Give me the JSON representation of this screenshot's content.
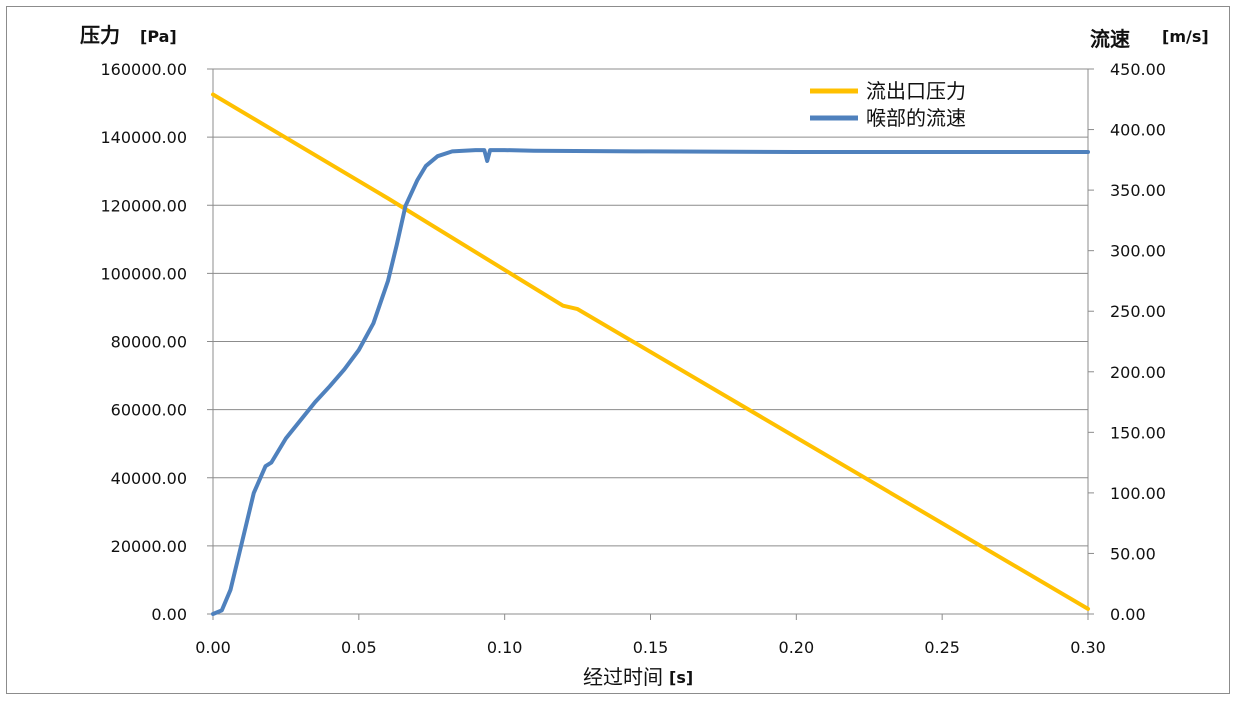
{
  "chart_data": {
    "type": "line",
    "x_axis": {
      "label": "经过时间",
      "unit": "[s]",
      "range": [
        0.0,
        0.3
      ],
      "ticks": [
        "0.00",
        "0.05",
        "0.10",
        "0.15",
        "0.20",
        "0.25",
        "0.30"
      ]
    },
    "y_axis_left": {
      "label": "压力",
      "unit": "[Pa]",
      "range": [
        0,
        160000
      ],
      "ticks": [
        "0.00",
        "20000.00",
        "40000.00",
        "60000.00",
        "80000.00",
        "100000.00",
        "120000.00",
        "140000.00",
        "160000.00"
      ]
    },
    "y_axis_right": {
      "label": "流速",
      "unit": "[m/s]",
      "range": [
        0,
        450
      ],
      "ticks": [
        "0.00",
        "50.00",
        "100.00",
        "150.00",
        "200.00",
        "250.00",
        "300.00",
        "350.00",
        "400.00",
        "450.00"
      ]
    },
    "grid": "horizontal",
    "legend_position": "top-right",
    "series": [
      {
        "name": "流出口压力",
        "axis": "left",
        "color": "#ffc000",
        "points": [
          [
            0.0,
            152500
          ],
          [
            0.06,
            122000
          ],
          [
            0.12,
            90500
          ],
          [
            0.125,
            89500
          ],
          [
            0.3,
            1500
          ]
        ]
      },
      {
        "name": "喉部的流速",
        "axis": "right",
        "color": "#4f81bd",
        "points": [
          [
            0.0,
            0
          ],
          [
            0.003,
            3
          ],
          [
            0.006,
            20
          ],
          [
            0.01,
            60
          ],
          [
            0.014,
            100
          ],
          [
            0.018,
            122
          ],
          [
            0.02,
            125
          ],
          [
            0.025,
            145
          ],
          [
            0.03,
            160
          ],
          [
            0.035,
            175
          ],
          [
            0.04,
            188
          ],
          [
            0.045,
            202
          ],
          [
            0.05,
            218
          ],
          [
            0.055,
            240
          ],
          [
            0.06,
            275
          ],
          [
            0.063,
            305
          ],
          [
            0.066,
            337
          ],
          [
            0.07,
            358
          ],
          [
            0.073,
            370
          ],
          [
            0.077,
            378
          ],
          [
            0.082,
            382
          ],
          [
            0.09,
            383
          ],
          [
            0.093,
            383
          ],
          [
            0.094,
            374
          ],
          [
            0.095,
            383
          ],
          [
            0.1,
            383
          ],
          [
            0.11,
            382.5
          ],
          [
            0.15,
            382
          ],
          [
            0.2,
            381.5
          ],
          [
            0.3,
            381.5
          ]
        ]
      }
    ]
  }
}
